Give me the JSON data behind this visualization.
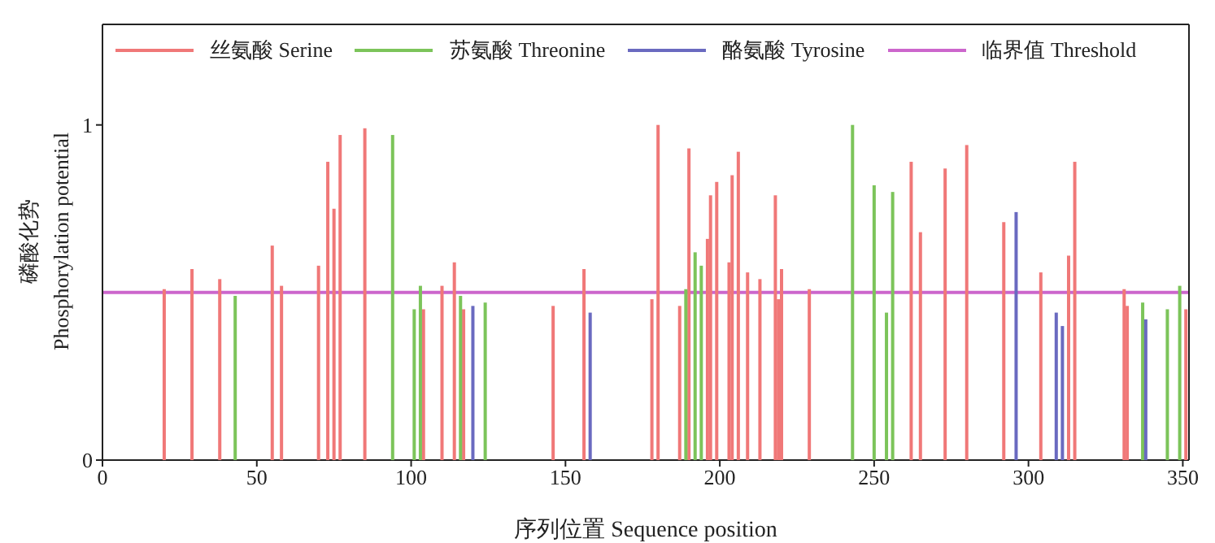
{
  "chart_data": {
    "type": "bar",
    "xlabel": "序列位置 Sequence position",
    "ylabel": "磷酸化势 Phosphorylation potential",
    "xlim": [
      0,
      352
    ],
    "xticks": [
      0,
      50,
      100,
      150,
      200,
      250,
      300,
      350
    ],
    "ylim": [
      0,
      1.3
    ],
    "yticks": [
      0,
      1
    ],
    "legend": "top",
    "grid": false,
    "series": [
      {
        "name": "丝氨酸 Serine",
        "color": "#f07878",
        "x": [
          20,
          29,
          38,
          55,
          58,
          70,
          73,
          75,
          77,
          85,
          104,
          110,
          114,
          117,
          146,
          156,
          178,
          180,
          187,
          190,
          196,
          197,
          199,
          203,
          204,
          206,
          209,
          213,
          218,
          219,
          220,
          229,
          262,
          265,
          273,
          280,
          292,
          304,
          313,
          315,
          331,
          332,
          351
        ],
        "values": [
          0.51,
          0.57,
          0.54,
          0.64,
          0.52,
          0.58,
          0.89,
          0.75,
          0.97,
          0.99,
          0.45,
          0.52,
          0.59,
          0.45,
          0.46,
          0.57,
          0.48,
          1.0,
          0.46,
          0.93,
          0.66,
          0.79,
          0.83,
          0.59,
          0.85,
          0.92,
          0.56,
          0.54,
          0.79,
          0.48,
          0.57,
          0.51,
          0.89,
          0.68,
          0.87,
          0.94,
          0.71,
          0.56,
          0.61,
          0.89,
          0.51,
          0.46,
          0.45
        ]
      },
      {
        "name": "苏氨酸 Threonine",
        "color": "#7cc45a",
        "x": [
          43,
          94,
          101,
          103,
          116,
          124,
          189,
          192,
          194,
          243,
          250,
          254,
          256,
          337,
          345,
          349
        ],
        "values": [
          0.49,
          0.97,
          0.45,
          0.52,
          0.49,
          0.47,
          0.51,
          0.62,
          0.58,
          1.0,
          0.82,
          0.44,
          0.8,
          0.47,
          0.45,
          0.52
        ]
      },
      {
        "name": "酪氨酸 Tyrosine",
        "color": "#6a6ac0",
        "x": [
          120,
          158,
          296,
          309,
          311,
          338
        ],
        "values": [
          0.46,
          0.44,
          0.74,
          0.44,
          0.4,
          0.42
        ]
      }
    ],
    "ref_lines": [
      {
        "axis": "y",
        "value": 0.5,
        "label": "临界值 Threshold",
        "color": "#cc66cc"
      }
    ]
  }
}
